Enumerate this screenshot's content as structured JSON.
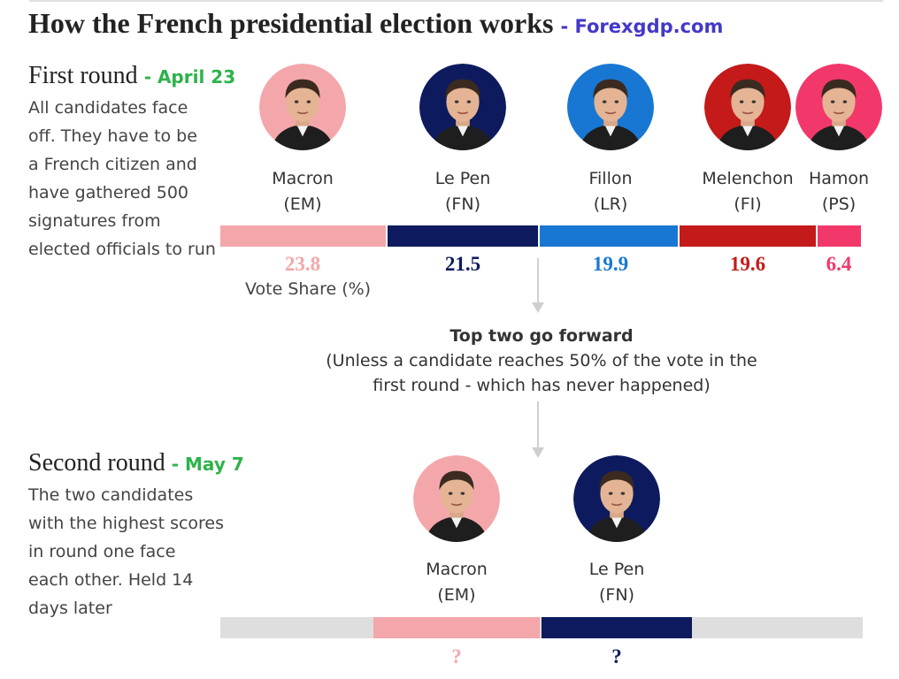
{
  "header": {
    "title": "How the French presidential election works",
    "separator": "-",
    "brand": "Forexgdp.com"
  },
  "first_round": {
    "heading": "First round",
    "date": "- April 23",
    "description": [
      "All candidates face",
      "off. They have to be",
      "a French citizen and",
      "have gathered 500",
      "signatures from",
      "elected officials to run"
    ],
    "vote_share_label": "Vote Share (%)"
  },
  "transition": {
    "headline": "Top two go forward",
    "note_line1": "(Unless a candidate reaches 50% of the vote in the",
    "note_line2": "first round - which has never happened)"
  },
  "second_round": {
    "heading": "Second round",
    "date": "- May 7",
    "description": [
      "The two candidates",
      "with the highest scores",
      "in round one face",
      "each other. Held 14",
      "days later"
    ]
  },
  "colors": {
    "macron": "#f4a7ab",
    "le_pen": "#0d1b5e",
    "fillon": "#1877d2",
    "melenchon": "#c41a1a",
    "hamon": "#f2386a",
    "grey": "#dedede",
    "accent_green": "#2db34a",
    "brand_blue": "#4338ca"
  },
  "chart_data": [
    {
      "type": "bar",
      "orientation": "stacked-horizontal",
      "title": "First round",
      "categories": [
        "Macron",
        "Le Pen",
        "Fillon",
        "Melenchon",
        "Hamon"
      ],
      "parties": [
        "(EM)",
        "(FN)",
        "(LR)",
        "(FI)",
        "(PS)"
      ],
      "values": [
        23.8,
        21.5,
        19.9,
        19.6,
        6.4
      ],
      "value_labels": [
        "23.8",
        "21.5",
        "19.9",
        "19.6",
        "6.4"
      ],
      "colors": [
        "#f4a7ab",
        "#0d1b5e",
        "#1877d2",
        "#c41a1a",
        "#f2386a"
      ],
      "value_label": "Vote Share (%)"
    },
    {
      "type": "bar",
      "orientation": "stacked-horizontal",
      "title": "Second round",
      "categories": [
        "Macron",
        "Le Pen"
      ],
      "parties": [
        "(EM)",
        "(FN)"
      ],
      "values": [
        null,
        null
      ],
      "value_labels": [
        "?",
        "?"
      ],
      "colors": [
        "#f4a7ab",
        "#0d1b5e"
      ]
    }
  ]
}
